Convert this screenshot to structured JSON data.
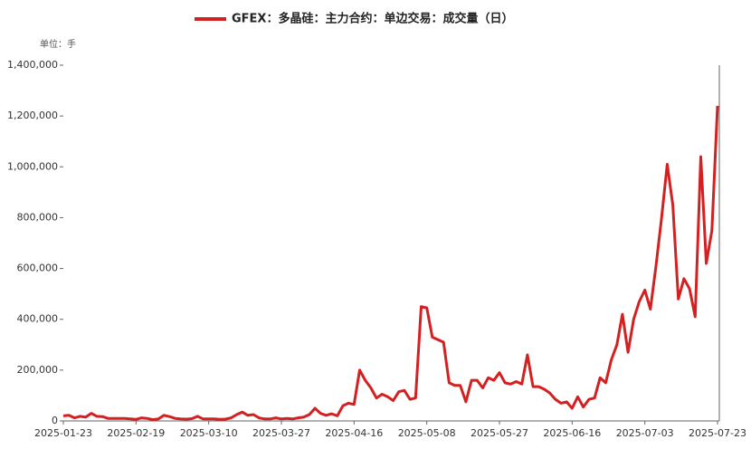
{
  "chart_data": {
    "type": "line",
    "title": "GFEX：多晶硅：主力合约：单边交易：成交量（日）",
    "unit_label": "单位：手",
    "categories": [
      "2025-01-23",
      null,
      null,
      null,
      null,
      null,
      null,
      null,
      null,
      null,
      null,
      null,
      null,
      "2025-02-19",
      null,
      null,
      null,
      null,
      null,
      null,
      null,
      null,
      null,
      null,
      null,
      null,
      "2025-03-10",
      null,
      null,
      null,
      null,
      null,
      null,
      null,
      null,
      null,
      null,
      null,
      null,
      "2025-03-27",
      null,
      null,
      null,
      null,
      null,
      null,
      null,
      null,
      null,
      null,
      null,
      null,
      "2025-04-16",
      null,
      null,
      null,
      null,
      null,
      null,
      null,
      null,
      null,
      null,
      null,
      null,
      "2025-05-08",
      null,
      null,
      null,
      null,
      null,
      null,
      null,
      null,
      null,
      null,
      null,
      null,
      "2025-05-27",
      null,
      null,
      null,
      null,
      null,
      null,
      null,
      null,
      null,
      null,
      null,
      null,
      "2025-06-16",
      null,
      null,
      null,
      null,
      null,
      null,
      null,
      null,
      null,
      null,
      null,
      null,
      "2025-07-03",
      null,
      null,
      null,
      null,
      null,
      null,
      null,
      null,
      null,
      null,
      null,
      null,
      "2025-07-23"
    ],
    "series": [
      {
        "name": "GFEX：多晶硅：主力合约：单边交易：成交量（日）",
        "color": "#d42020",
        "values": [
          20000,
          22000,
          12000,
          18000,
          15000,
          30000,
          18000,
          17000,
          10000,
          10000,
          10000,
          10000,
          8000,
          6000,
          12000,
          10000,
          5000,
          8000,
          22000,
          17000,
          10000,
          8000,
          7000,
          9000,
          18000,
          8000,
          8000,
          8000,
          6000,
          7000,
          12000,
          25000,
          35000,
          22000,
          25000,
          12000,
          8000,
          8000,
          12000,
          8000,
          10000,
          8000,
          12000,
          15000,
          25000,
          50000,
          30000,
          22000,
          28000,
          20000,
          60000,
          70000,
          65000,
          200000,
          160000,
          130000,
          90000,
          105000,
          95000,
          80000,
          115000,
          120000,
          85000,
          90000,
          450000,
          445000,
          330000,
          320000,
          310000,
          150000,
          140000,
          140000,
          75000,
          160000,
          160000,
          130000,
          170000,
          160000,
          190000,
          150000,
          145000,
          155000,
          145000,
          260000,
          135000,
          135000,
          125000,
          110000,
          85000,
          70000,
          75000,
          50000,
          95000,
          55000,
          85000,
          90000,
          170000,
          150000,
          240000,
          300000,
          420000,
          270000,
          400000,
          470000,
          515000,
          440000,
          610000,
          800000,
          1010000,
          850000,
          480000,
          560000,
          520000,
          410000,
          1040000,
          620000,
          750000,
          1240000
        ]
      }
    ],
    "ylim": [
      0,
      1400000
    ],
    "yticks": [
      0,
      {
        "value": 200000,
        "label": "200,000"
      },
      {
        "value": 400000,
        "label": "400,000"
      },
      {
        "value": 600000,
        "label": "600,000"
      },
      {
        "value": 800000,
        "label": "800,000"
      },
      {
        "value": 1000000,
        "label": "1,000,000"
      },
      {
        "value": 1200000,
        "label": "1,200,000"
      },
      {
        "value": 1400000,
        "label": "1,400,000"
      }
    ]
  }
}
